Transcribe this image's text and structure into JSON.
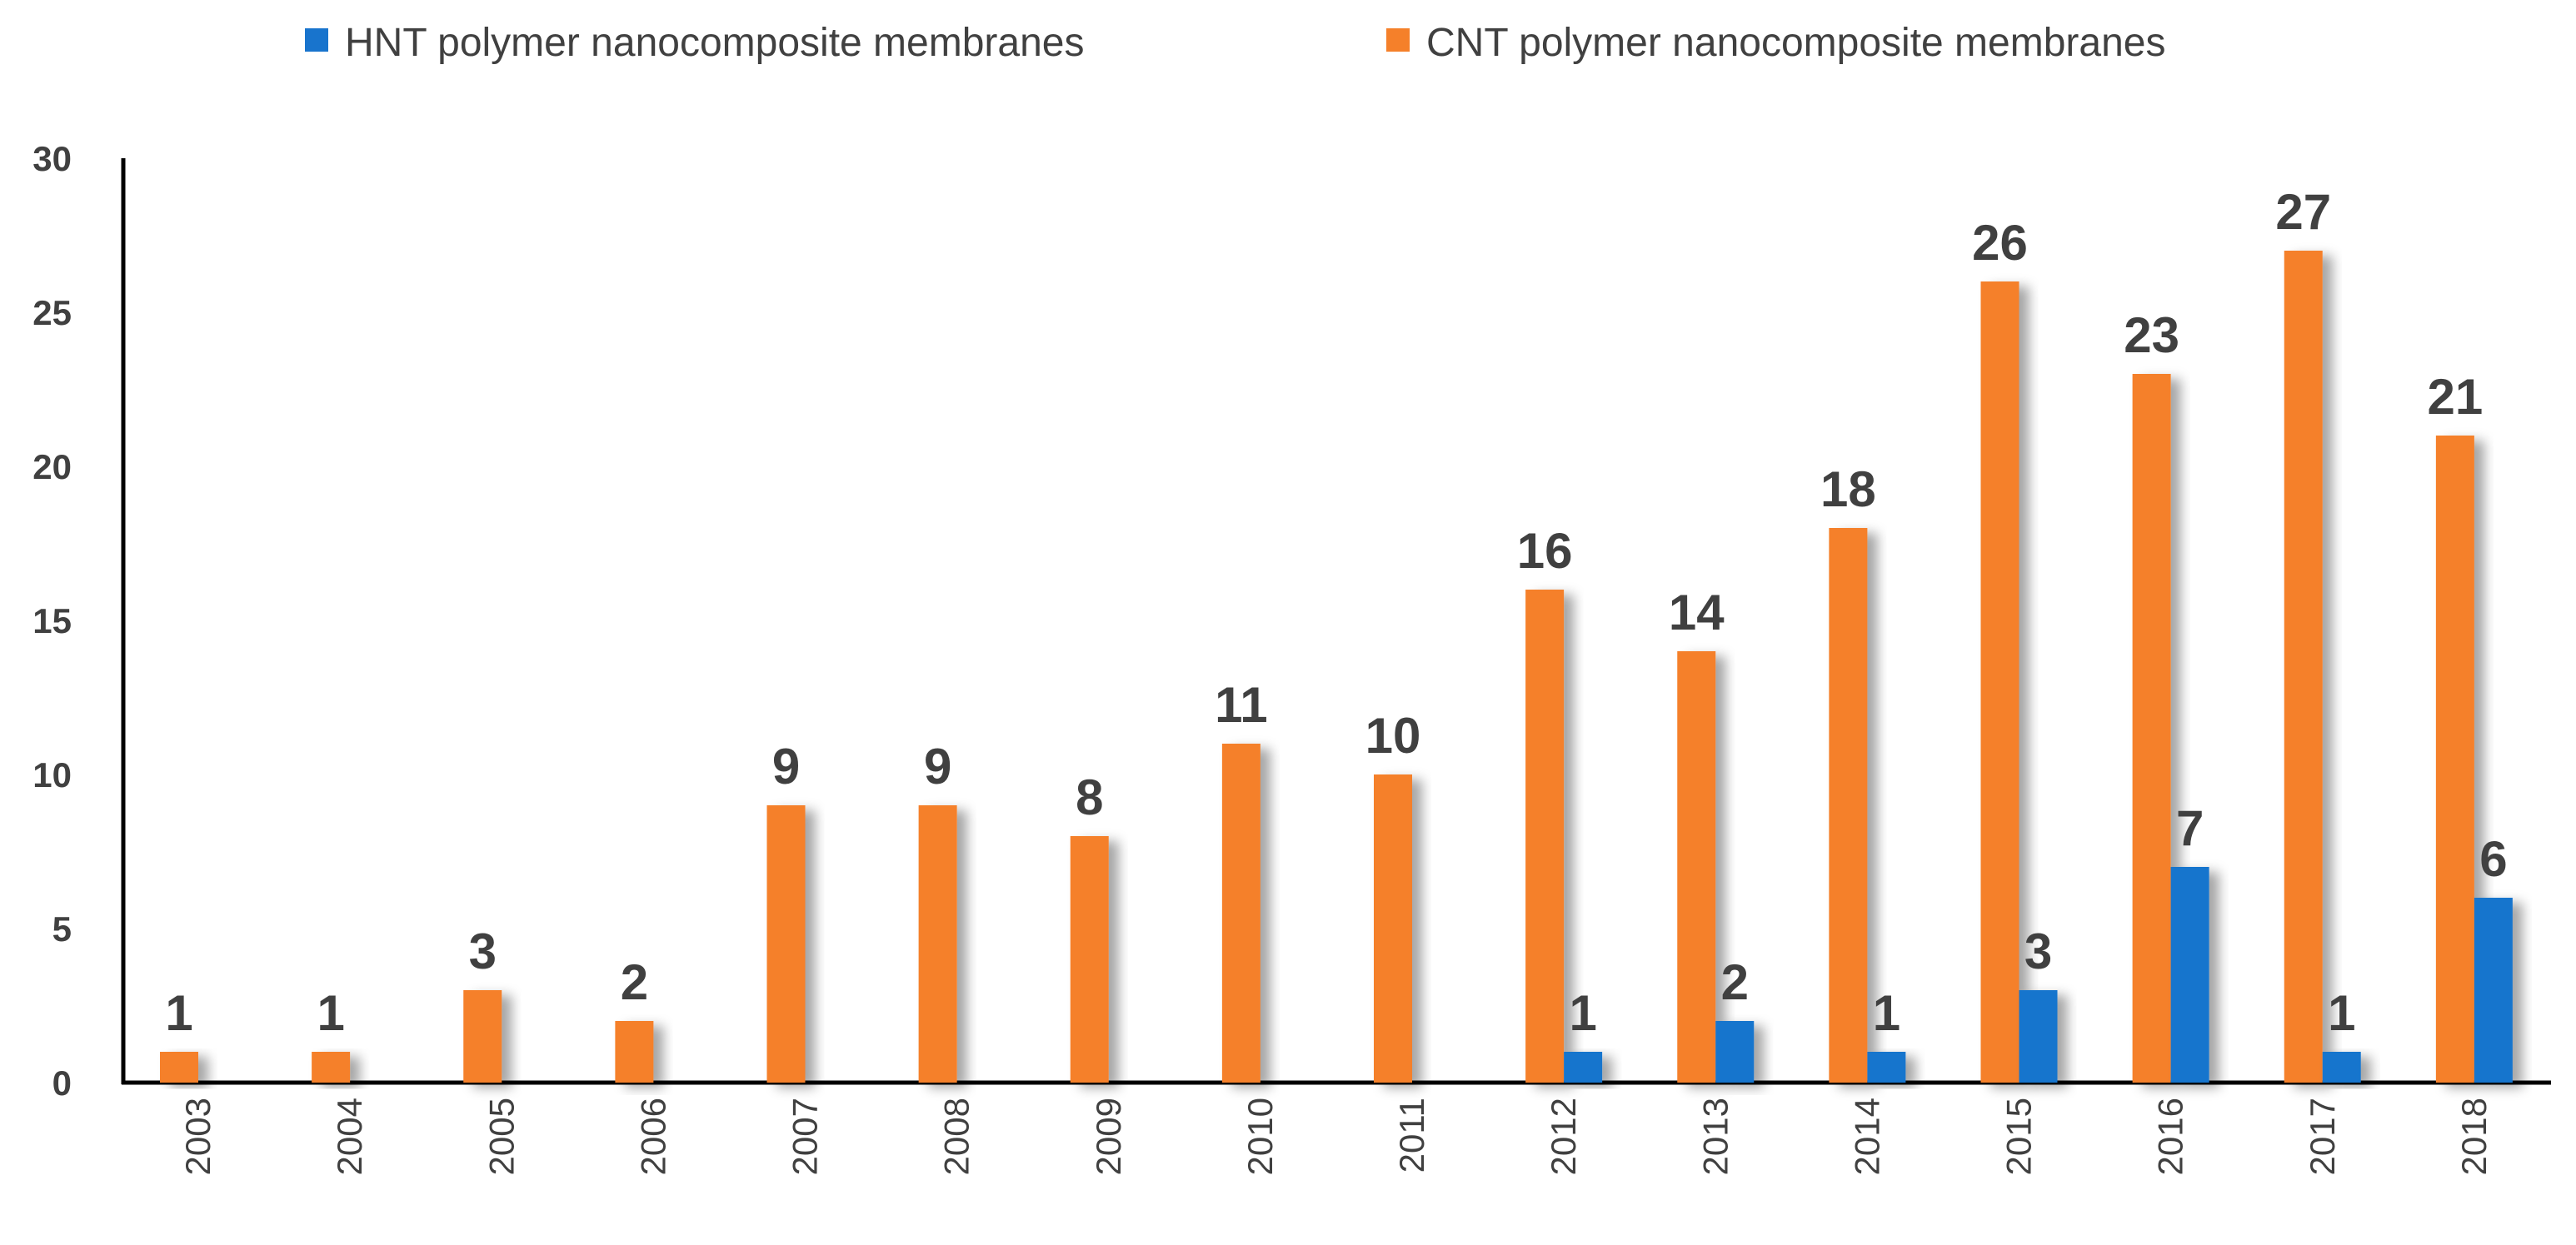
{
  "chart_data": {
    "type": "bar",
    "categories": [
      "2003",
      "2004",
      "2005",
      "2006",
      "2007",
      "2008",
      "2009",
      "2010",
      "2011",
      "2012",
      "2013",
      "2014",
      "2015",
      "2016",
      "2017",
      "2018"
    ],
    "series": [
      {
        "name": "HNT polymer nanocomposite membranes",
        "color": "#1874cd",
        "values": [
          0,
          0,
          0,
          0,
          0,
          0,
          0,
          0,
          0,
          1,
          2,
          1,
          3,
          7,
          1,
          6
        ],
        "labels": [
          "",
          "",
          "",
          "",
          "",
          "",
          "",
          "",
          "",
          "1",
          "2",
          "1",
          "3",
          "7",
          "1",
          "6"
        ]
      },
      {
        "name": "CNT polymer nanocomposite membranes",
        "color": "#f5802a",
        "values": [
          1,
          1,
          3,
          2,
          9,
          9,
          8,
          11,
          10,
          16,
          14,
          18,
          26,
          23,
          27,
          21
        ],
        "labels": [
          "1",
          "1",
          "3",
          "2",
          "9",
          "9",
          "8",
          "11",
          "10",
          "16",
          "14",
          "18",
          "26",
          "23",
          "27",
          "21"
        ]
      }
    ],
    "yticks": [
      0,
      5,
      10,
      15,
      20,
      25,
      30
    ],
    "ylim": [
      0,
      30
    ],
    "title": "",
    "xlabel": "",
    "ylabel": "",
    "legend_position": "top",
    "grid": false
  }
}
